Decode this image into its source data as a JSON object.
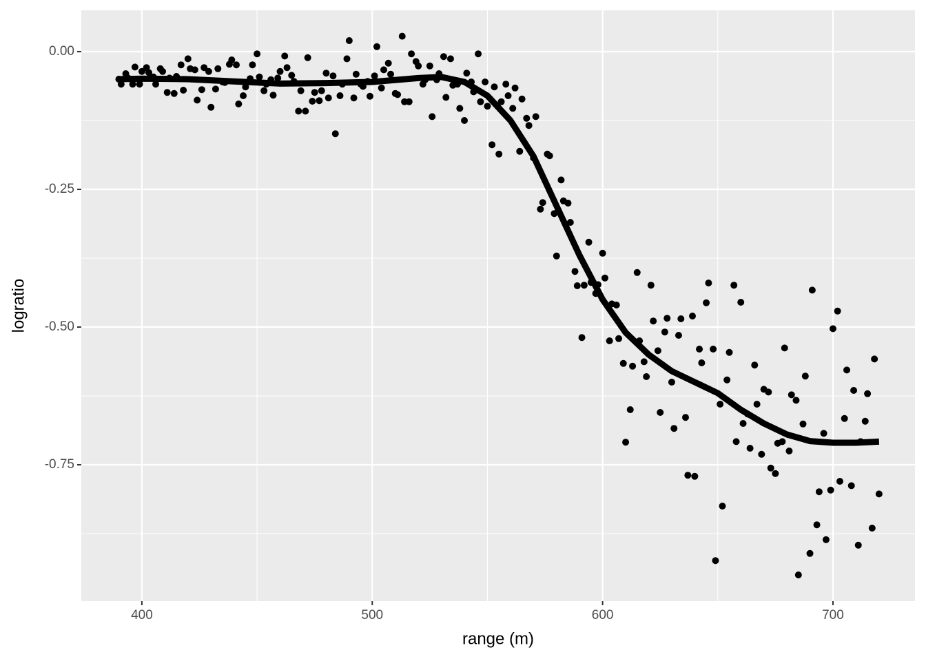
{
  "chart_data": {
    "type": "scatter",
    "x_label": "range (m)",
    "y_label": "logratio",
    "xlim": [
      373.7,
      735.6
    ],
    "ylim": [
      -0.9975,
      0.075
    ],
    "xticks": [
      400,
      500,
      600,
      700
    ],
    "yticks": [
      {
        "value": 0,
        "label": "0.00"
      },
      {
        "value": -0.25,
        "label": "-0.25"
      },
      {
        "value": -0.5,
        "label": "-0.50"
      },
      {
        "value": -0.75,
        "label": "-0.75"
      }
    ],
    "x_minor_ticks": [
      450,
      550,
      650
    ],
    "y_minor_ticks": [
      -0.125,
      -0.375,
      -0.625,
      -0.875
    ],
    "grid": true,
    "color": "#000000",
    "x": [
      390,
      391,
      393,
      394,
      396,
      397,
      399,
      400,
      402,
      403,
      405,
      406,
      408,
      409,
      411,
      412,
      414,
      415,
      417,
      418,
      420,
      421,
      423,
      424,
      426,
      427,
      429,
      430,
      432,
      433,
      435,
      436,
      438,
      439,
      441,
      442,
      444,
      445,
      447,
      448,
      450,
      451,
      453,
      454,
      456,
      457,
      459,
      460,
      462,
      463,
      465,
      466,
      468,
      469,
      471,
      472,
      474,
      475,
      477,
      478,
      480,
      481,
      483,
      484,
      486,
      487,
      489,
      490,
      492,
      493,
      495,
      496,
      498,
      499,
      501,
      502,
      504,
      505,
      507,
      508,
      510,
      511,
      513,
      514,
      516,
      517,
      519,
      520,
      522,
      523,
      525,
      526,
      528,
      529,
      531,
      532,
      534,
      535,
      537,
      538,
      540,
      541,
      543,
      544,
      546,
      547,
      549,
      550,
      552,
      553,
      555,
      556,
      558,
      559,
      561,
      562,
      564,
      565,
      567,
      568,
      570,
      571,
      573,
      574,
      576,
      577,
      579,
      580,
      582,
      583,
      585,
      586,
      588,
      589,
      591,
      592,
      594,
      595,
      597,
      598,
      600,
      601,
      603,
      604,
      606,
      607,
      609,
      610,
      612,
      613,
      615,
      616,
      618,
      619,
      621,
      622,
      624,
      625,
      627,
      628,
      630,
      631,
      633,
      634,
      636,
      637,
      639,
      640,
      642,
      643,
      645,
      646,
      648,
      649,
      651,
      652,
      654,
      655,
      657,
      658,
      660,
      661,
      663,
      664,
      666,
      667,
      669,
      670,
      672,
      673,
      675,
      676,
      678,
      679,
      681,
      682,
      684,
      685,
      687,
      688,
      690,
      691,
      693,
      694,
      696,
      697,
      699,
      700,
      702,
      703,
      705,
      706,
      708,
      709,
      711,
      712,
      714,
      715,
      717,
      718,
      720
    ],
    "values": [
      -0.05,
      -0.059,
      -0.04,
      -0.048,
      -0.059,
      -0.028,
      -0.059,
      -0.036,
      -0.029,
      -0.038,
      -0.046,
      -0.059,
      -0.031,
      -0.036,
      -0.074,
      -0.048,
      -0.076,
      -0.045,
      -0.024,
      -0.07,
      -0.013,
      -0.031,
      -0.033,
      -0.088,
      -0.069,
      -0.029,
      -0.036,
      -0.101,
      -0.068,
      -0.031,
      -0.055,
      -0.056,
      -0.023,
      -0.015,
      -0.024,
      -0.095,
      -0.08,
      -0.064,
      -0.049,
      -0.024,
      -0.004,
      -0.046,
      -0.071,
      -0.059,
      -0.051,
      -0.079,
      -0.048,
      -0.036,
      -0.008,
      -0.029,
      -0.043,
      -0.054,
      -0.108,
      -0.071,
      -0.108,
      -0.011,
      -0.09,
      -0.074,
      -0.089,
      -0.071,
      -0.039,
      -0.084,
      -0.044,
      -0.149,
      -0.08,
      -0.059,
      -0.013,
      0.02,
      -0.084,
      -0.041,
      -0.059,
      -0.063,
      -0.054,
      -0.081,
      -0.044,
      0.009,
      -0.066,
      -0.033,
      -0.021,
      -0.041,
      -0.076,
      -0.078,
      0.028,
      -0.091,
      -0.091,
      -0.004,
      -0.018,
      -0.026,
      -0.059,
      -0.051,
      -0.026,
      -0.118,
      -0.051,
      -0.04,
      -0.009,
      -0.083,
      -0.013,
      -0.061,
      -0.059,
      -0.103,
      -0.125,
      -0.039,
      -0.055,
      -0.073,
      -0.004,
      -0.091,
      -0.055,
      -0.099,
      -0.169,
      -0.064,
      -0.186,
      -0.091,
      -0.059,
      -0.08,
      -0.103,
      -0.066,
      -0.181,
      -0.086,
      -0.121,
      -0.134,
      -0.193,
      -0.118,
      -0.286,
      -0.274,
      -0.186,
      -0.189,
      -0.294,
      -0.371,
      -0.233,
      -0.271,
      -0.275,
      -0.31,
      -0.399,
      -0.425,
      -0.519,
      -0.424,
      -0.346,
      -0.419,
      -0.439,
      -0.423,
      -0.366,
      -0.411,
      -0.525,
      -0.458,
      -0.46,
      -0.521,
      -0.566,
      -0.709,
      -0.65,
      -0.571,
      -0.401,
      -0.525,
      -0.563,
      -0.59,
      -0.424,
      -0.489,
      -0.543,
      -0.655,
      -0.509,
      -0.484,
      -0.6,
      -0.684,
      -0.515,
      -0.485,
      -0.664,
      -0.769,
      -0.48,
      -0.771,
      -0.54,
      -0.565,
      -0.456,
      -0.42,
      -0.54,
      -0.924,
      -0.64,
      -0.825,
      -0.596,
      -0.546,
      -0.424,
      -0.708,
      -0.455,
      -0.675,
      -0.658,
      -0.72,
      -0.569,
      -0.64,
      -0.731,
      -0.613,
      -0.618,
      -0.756,
      -0.766,
      -0.711,
      -0.708,
      -0.538,
      -0.725,
      -0.623,
      -0.633,
      -0.95,
      -0.676,
      -0.589,
      -0.911,
      -0.433,
      -0.859,
      -0.799,
      -0.693,
      -0.886,
      -0.796,
      -0.503,
      -0.471,
      -0.78,
      -0.666,
      -0.578,
      -0.788,
      -0.615,
      -0.896,
      -0.708,
      -0.671,
      -0.621,
      -0.865,
      -0.558,
      -0.803
    ],
    "smooth": {
      "color": "#000000",
      "x": [
        390,
        400,
        420,
        440,
        460,
        480,
        500,
        520,
        530,
        540,
        550,
        560,
        570,
        580,
        590,
        600,
        610,
        620,
        630,
        640,
        650,
        660,
        670,
        680,
        690,
        700,
        710,
        720
      ],
      "values": [
        -0.05,
        -0.049,
        -0.05,
        -0.054,
        -0.058,
        -0.057,
        -0.055,
        -0.048,
        -0.046,
        -0.055,
        -0.08,
        -0.125,
        -0.19,
        -0.28,
        -0.37,
        -0.45,
        -0.51,
        -0.55,
        -0.58,
        -0.6,
        -0.62,
        -0.65,
        -0.675,
        -0.695,
        -0.707,
        -0.71,
        -0.71,
        -0.708
      ]
    }
  }
}
